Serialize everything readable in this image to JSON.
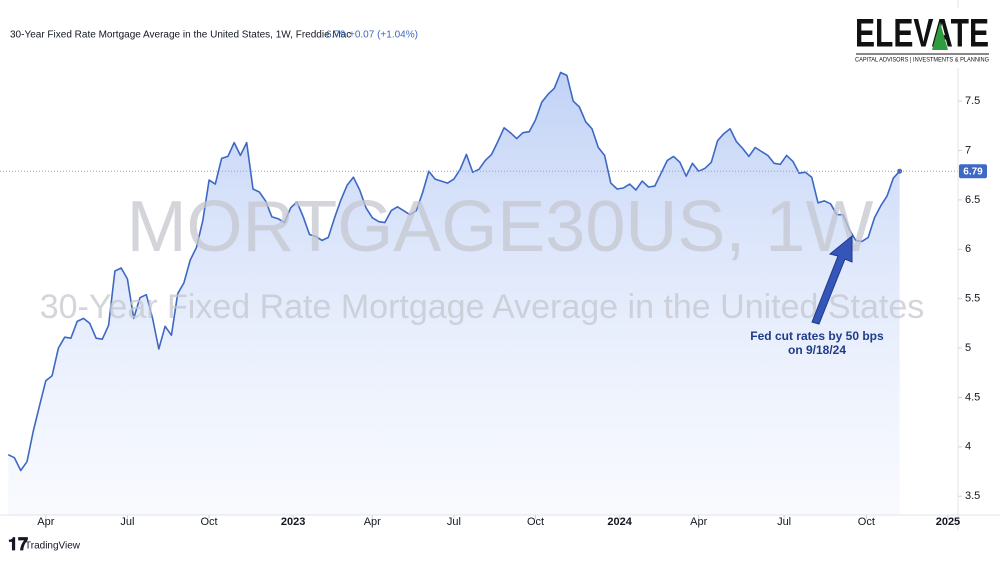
{
  "chart_data": {
    "type": "area",
    "title": "30-Year Fixed Rate Mortgage Average in the United States, 1W, Freddie Mac",
    "last_price": 6.79,
    "change_label": "+0.07 (+1.04%)",
    "watermark": "MORTGAGE30US, 1W",
    "watermark_subtitle": "30-Year Fixed Rate Mortgage Average in the United States",
    "annotation": [
      "Fed cut rates by 50 bps",
      "on 9/18/24"
    ],
    "logo": {
      "name": "ELEVATE",
      "tagline": "CAPITAL ADVISORS | INVESTMENTS & PLANNING"
    },
    "footer": "TradingView",
    "color": "#3d68c4",
    "categories": [
      null,
      null,
      null,
      null,
      null,
      null,
      null,
      null,
      null,
      null,
      null,
      null,
      null,
      null,
      null,
      null,
      null,
      null,
      null,
      null,
      null,
      null,
      null,
      null,
      null,
      null,
      null,
      null,
      null,
      null,
      null,
      null,
      null,
      null,
      null,
      null,
      null,
      null,
      null,
      null,
      null,
      null,
      null,
      null,
      null,
      null,
      null,
      null,
      null,
      null,
      null,
      null,
      null,
      null,
      null,
      null,
      null,
      null,
      null,
      null,
      null,
      null,
      null,
      null,
      null,
      null,
      null,
      null,
      null,
      null,
      null,
      null,
      null,
      null,
      null,
      null,
      null,
      null,
      null,
      null,
      null,
      null,
      null,
      null,
      null,
      null,
      null,
      null,
      null,
      null,
      null,
      null,
      null,
      null,
      null,
      null,
      null,
      null,
      null,
      null,
      null,
      null,
      null,
      null,
      null,
      null,
      null,
      null,
      null,
      null,
      null,
      null,
      null,
      null,
      null,
      null,
      null,
      null,
      null,
      null,
      null,
      null,
      null,
      null,
      null,
      null,
      null,
      null,
      null,
      null,
      null,
      null,
      null,
      null,
      null,
      null,
      null,
      null,
      null,
      null,
      null,
      null,
      null
    ],
    "values": [
      3.92,
      3.89,
      3.76,
      3.85,
      4.16,
      4.42,
      4.67,
      4.72,
      5.0,
      5.11,
      5.1,
      5.27,
      5.3,
      5.25,
      5.1,
      5.09,
      5.23,
      5.78,
      5.81,
      5.7,
      5.3,
      5.51,
      5.54,
      5.3,
      4.99,
      5.22,
      5.13,
      5.55,
      5.66,
      5.89,
      6.02,
      6.29,
      6.7,
      6.66,
      6.92,
      6.94,
      7.08,
      6.95,
      7.08,
      6.61,
      6.58,
      6.49,
      6.33,
      6.31,
      6.27,
      6.42,
      6.48,
      6.33,
      6.15,
      6.13,
      6.09,
      6.12,
      6.32,
      6.5,
      6.65,
      6.73,
      6.6,
      6.42,
      6.32,
      6.28,
      6.27,
      6.39,
      6.43,
      6.39,
      6.35,
      6.39,
      6.57,
      6.79,
      6.71,
      6.69,
      6.67,
      6.71,
      6.81,
      6.96,
      6.78,
      6.81,
      6.9,
      6.96,
      7.09,
      7.23,
      7.18,
      7.12,
      7.18,
      7.19,
      7.31,
      7.49,
      7.57,
      7.63,
      7.79,
      7.76,
      7.5,
      7.44,
      7.29,
      7.22,
      7.03,
      6.95,
      6.67,
      6.61,
      6.62,
      6.66,
      6.6,
      6.69,
      6.63,
      6.64,
      6.77,
      6.9,
      6.94,
      6.88,
      6.74,
      6.87,
      6.79,
      6.82,
      6.88,
      7.1,
      7.17,
      7.22,
      7.09,
      7.02,
      6.94,
      7.03,
      6.99,
      6.95,
      6.87,
      6.86,
      6.95,
      6.89,
      6.77,
      6.78,
      6.73,
      6.47,
      6.49,
      6.46,
      6.35,
      6.35,
      6.2,
      6.09,
      6.08,
      6.12,
      6.32,
      6.44,
      6.54,
      6.72,
      6.79
    ],
    "xlim": [
      -1.3,
      151.3
    ],
    "xticks": [
      {
        "value": 6,
        "label": "Apr"
      },
      {
        "value": 19,
        "label": "Jul"
      },
      {
        "value": 32,
        "label": "Oct"
      },
      {
        "value": 45.4,
        "label": "2023"
      },
      {
        "value": 58,
        "label": "Apr"
      },
      {
        "value": 71,
        "label": "Jul"
      },
      {
        "value": 84,
        "label": "Oct"
      },
      {
        "value": 97.4,
        "label": "2024"
      },
      {
        "value": 110,
        "label": "Apr"
      },
      {
        "value": 123.6,
        "label": "Jul"
      },
      {
        "value": 136.7,
        "label": "Oct"
      },
      {
        "value": 149.7,
        "label": "2025"
      }
    ],
    "ylim": [
      3.31,
      8.24
    ],
    "yticks": [
      3.5,
      4,
      4.5,
      5,
      5.5,
      6,
      6.5,
      7,
      7.5
    ],
    "grid": false
  }
}
